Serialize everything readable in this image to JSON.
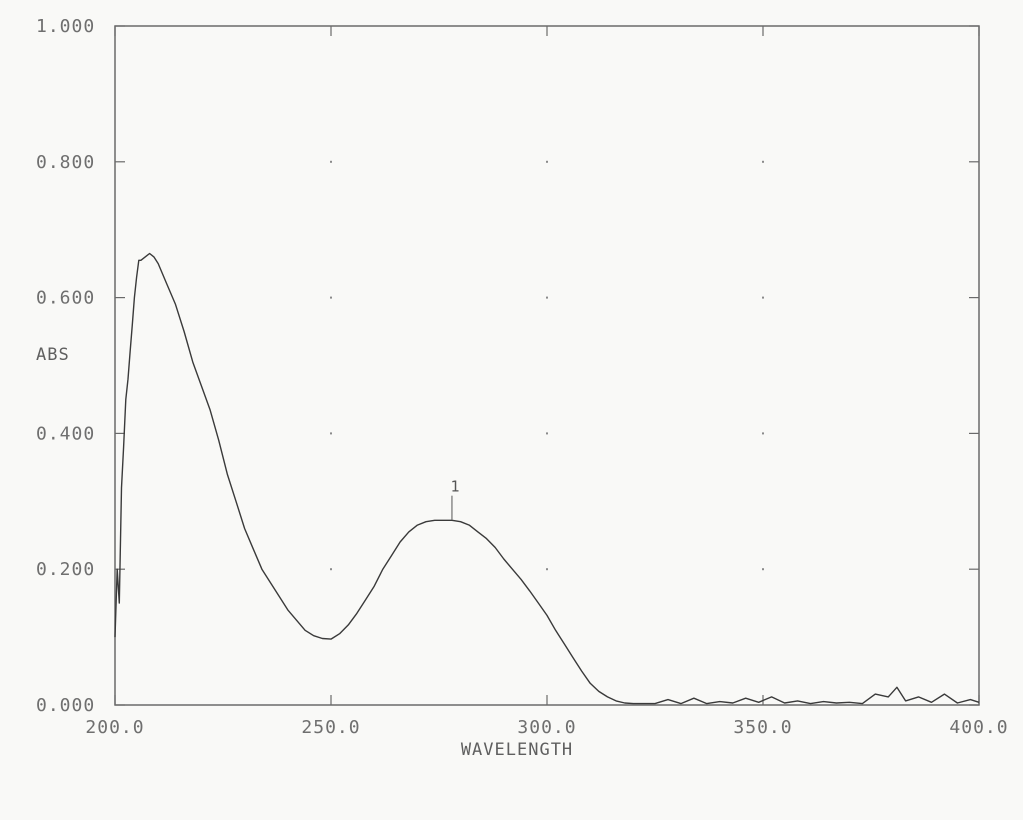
{
  "chart_data": {
    "type": "line",
    "xlabel": "WAVELENGTH",
    "ylabel": "ABS",
    "xlim": [
      200.0,
      400.0
    ],
    "ylim": [
      0.0,
      1.0
    ],
    "x_ticks": [
      "200.0",
      "250.0",
      "300.0",
      "350.0",
      "400.0"
    ],
    "y_ticks": [
      "0.000",
      "0.200",
      "0.400",
      "0.600",
      "0.800",
      "1.000"
    ],
    "grid": "dotted",
    "legend": "none",
    "peak_marker": {
      "label": "1",
      "x": 278.0,
      "y": 0.27
    },
    "series": [
      {
        "x": [
          200.0,
          200.5,
          201.0,
          201.5,
          202.0,
          202.5,
          203.0,
          203.5,
          204.0,
          204.5,
          205.0,
          205.5,
          206.0,
          207.0,
          208.0,
          209.0,
          210.0,
          212.0,
          214.0,
          216.0,
          218.0,
          220.0,
          222.0,
          224.0,
          226.0,
          228.0,
          230.0,
          232.0,
          234.0,
          236.0,
          238.0,
          240.0,
          242.0,
          244.0,
          246.0,
          248.0,
          250.0,
          252.0,
          254.0,
          256.0,
          258.0,
          260.0,
          262.0,
          264.0,
          266.0,
          268.0,
          270.0,
          272.0,
          274.0,
          276.0,
          278.0,
          280.0,
          282.0,
          284.0,
          286.0,
          288.0,
          290.0,
          292.0,
          294.0,
          296.0,
          298.0,
          300.0,
          302.0,
          304.0,
          306.0,
          308.0,
          310.0,
          312.0,
          314.0,
          316.0,
          318.0,
          320.0,
          322.0,
          325.0,
          328.0,
          331.0,
          334.0,
          337.0,
          340.0,
          343.0,
          346.0,
          349.0,
          352.0,
          355.0,
          358.0,
          361.0,
          364.0,
          367.0,
          370.0,
          373.0,
          376.0,
          379.0,
          381.0,
          383.0,
          386.0,
          389.0,
          392.0,
          395.0,
          398.0,
          400.0
        ],
        "y": [
          0.1,
          0.2,
          0.15,
          0.32,
          0.38,
          0.45,
          0.48,
          0.52,
          0.56,
          0.6,
          0.63,
          0.655,
          0.655,
          0.66,
          0.665,
          0.66,
          0.65,
          0.62,
          0.59,
          0.55,
          0.505,
          0.47,
          0.435,
          0.39,
          0.34,
          0.3,
          0.26,
          0.23,
          0.2,
          0.18,
          0.16,
          0.14,
          0.125,
          0.11,
          0.102,
          0.098,
          0.097,
          0.105,
          0.118,
          0.135,
          0.155,
          0.175,
          0.2,
          0.22,
          0.24,
          0.255,
          0.265,
          0.27,
          0.272,
          0.272,
          0.272,
          0.27,
          0.265,
          0.255,
          0.245,
          0.232,
          0.215,
          0.2,
          0.185,
          0.168,
          0.15,
          0.132,
          0.11,
          0.09,
          0.07,
          0.05,
          0.032,
          0.02,
          0.012,
          0.006,
          0.003,
          0.002,
          0.002,
          0.002,
          0.008,
          0.002,
          0.01,
          0.002,
          0.005,
          0.003,
          0.01,
          0.004,
          0.012,
          0.003,
          0.006,
          0.002,
          0.005,
          0.003,
          0.004,
          0.002,
          0.016,
          0.012,
          0.026,
          0.006,
          0.012,
          0.004,
          0.016,
          0.003,
          0.008,
          0.004
        ]
      }
    ]
  },
  "colors": {
    "line": "#3a3a3a",
    "axes": "#6a6a6a",
    "text": "#6f6f6f",
    "background": "#f9f9f7"
  }
}
